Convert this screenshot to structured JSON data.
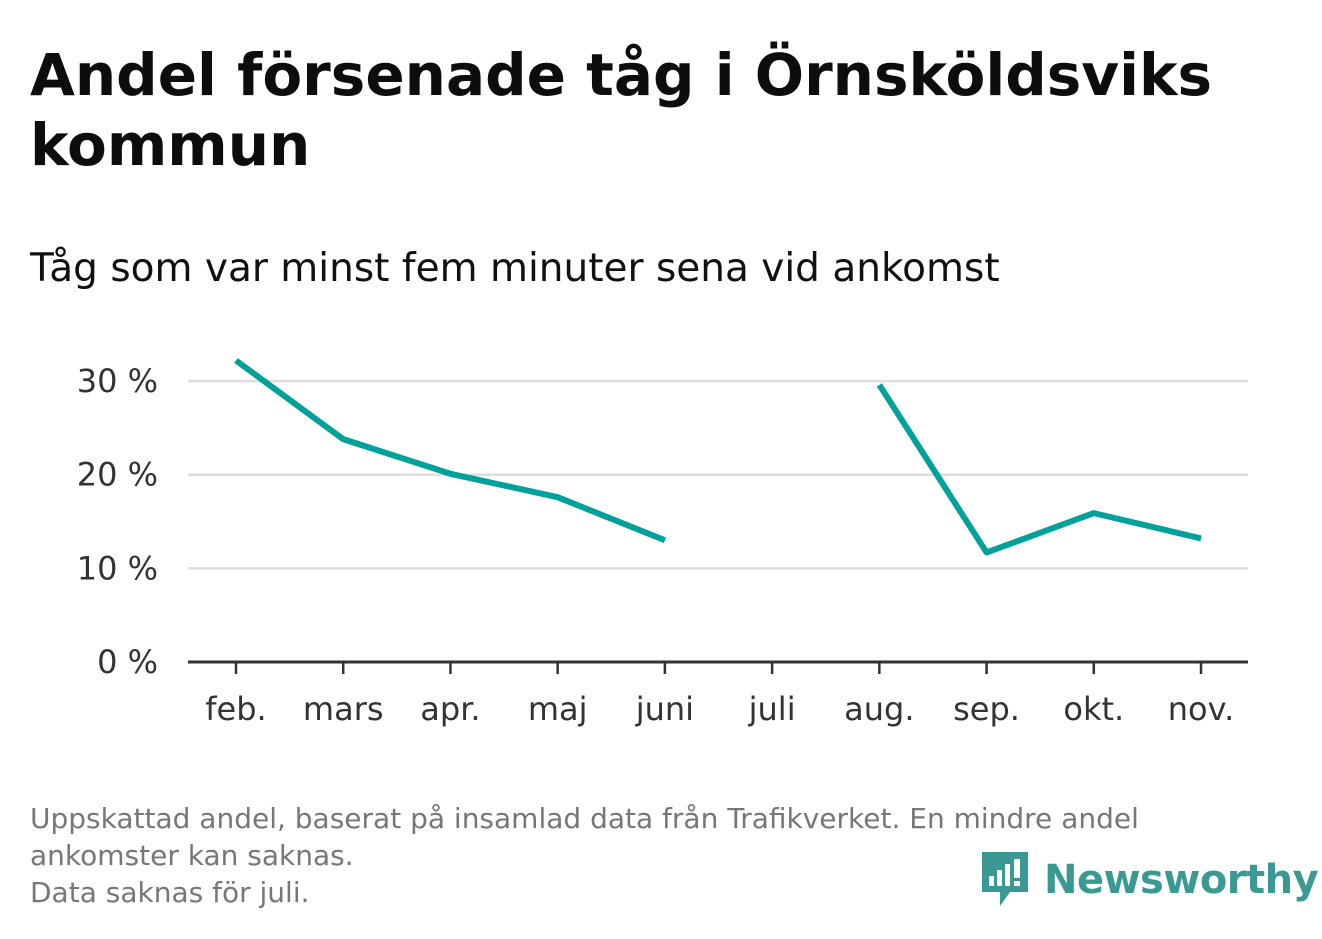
{
  "title": "Andel försenade tåg i Örnsköldsviks kommun",
  "subtitle": "Tåg som var minst fem minuter sena vid ankomst",
  "footnote": {
    "line1": "Uppskattad andel, baserat på insamlad data från Trafikverket. En mindre andel ankomster kan saknas.",
    "line2": "Data saknas för juli."
  },
  "logo": {
    "text": "Newsworthy",
    "icon": "newsworthy-logo-icon",
    "color": "#3a9a93"
  },
  "chart_data": {
    "type": "line",
    "title": "Andel försenade tåg i Örnsköldsviks kommun",
    "subtitle": "Tåg som var minst fem minuter sena vid ankomst",
    "categories": [
      "feb.",
      "mars",
      "apr.",
      "maj",
      "juni",
      "juli",
      "aug.",
      "sep.",
      "okt.",
      "nov."
    ],
    "series": [
      {
        "values": [
          32.2,
          23.8,
          20.1,
          17.6,
          13.0,
          null,
          29.6,
          11.7,
          15.9,
          13.2
        ],
        "color": "#00a19a"
      }
    ],
    "y_ticks": [
      0,
      10,
      20,
      30
    ],
    "y_tick_labels": [
      "0 %",
      "10 %",
      "20 %",
      "30 %"
    ],
    "ylim": [
      0,
      33
    ],
    "xlabel": "",
    "ylabel": "",
    "grid": true,
    "gridline_color": "#dddddd",
    "axis_color": "#333333"
  }
}
